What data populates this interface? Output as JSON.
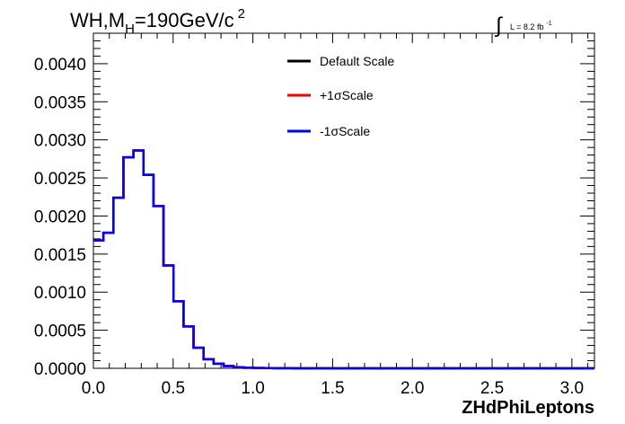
{
  "title": {
    "main": "WH,M",
    "subscript": "H",
    "rest": "=190GeV/c",
    "superscript": "2"
  },
  "lumi": {
    "integral_symbol": "∫",
    "text": "L = 8.2 fb",
    "superscript": "-1"
  },
  "chart_data": {
    "type": "step",
    "xlabel": "ZHdPhiLeptons",
    "ylabel": "",
    "xlim": [
      0,
      3.1416
    ],
    "ylim": [
      0,
      0.0044
    ],
    "x_ticks": [
      "0.0",
      "0.5",
      "1.0",
      "1.5",
      "2.0",
      "2.5",
      "3.0"
    ],
    "x_tick_values": [
      0,
      0.5,
      1.0,
      1.5,
      2.0,
      2.5,
      3.0
    ],
    "y_ticks": [
      "0.0000",
      "0.0005",
      "0.0010",
      "0.0015",
      "0.0020",
      "0.0025",
      "0.0030",
      "0.0035",
      "0.0040"
    ],
    "y_tick_values": [
      0,
      0.0005,
      0.001,
      0.0015,
      0.002,
      0.0025,
      0.003,
      0.0035,
      0.004
    ],
    "bin_width": 0.0628,
    "bin_edges_start": 0,
    "series": [
      {
        "name": "Default Scale",
        "color": "#000000",
        "values": [
          0.00168,
          0.00178,
          0.00224,
          0.00277,
          0.00286,
          0.00254,
          0.00213,
          0.00135,
          0.00088,
          0.00055,
          0.00027,
          0.00012,
          6e-05,
          3e-05,
          1.5e-05,
          8e-06,
          5e-06,
          3e-06,
          2e-06,
          1e-06,
          0,
          0,
          0,
          0,
          0,
          0,
          0,
          0,
          0,
          0,
          0,
          0,
          0,
          0,
          0,
          0,
          0,
          0,
          0,
          0,
          0,
          0,
          0,
          0,
          0,
          0,
          0,
          0,
          0,
          0
        ]
      },
      {
        "name": "+1σScale",
        "color": "#ff0000",
        "values": [
          0.00168,
          0.00178,
          0.00224,
          0.00277,
          0.00286,
          0.00254,
          0.00213,
          0.00135,
          0.00088,
          0.00055,
          0.00027,
          0.00012,
          6e-05,
          3e-05,
          1.5e-05,
          8e-06,
          5e-06,
          3e-06,
          2e-06,
          1e-06,
          0,
          0,
          0,
          0,
          0,
          0,
          0,
          0,
          0,
          0,
          0,
          0,
          0,
          0,
          0,
          0,
          0,
          0,
          0,
          0,
          0,
          0,
          0,
          0,
          0,
          0,
          0,
          0,
          0,
          0
        ]
      },
      {
        "name": "-1σScale",
        "color": "#0000ee",
        "values": [
          0.00168,
          0.00178,
          0.00224,
          0.00277,
          0.00286,
          0.00254,
          0.00213,
          0.00135,
          0.00088,
          0.00055,
          0.00027,
          0.00012,
          6e-05,
          3e-05,
          1.5e-05,
          8e-06,
          5e-06,
          3e-06,
          2e-06,
          1e-06,
          0,
          0,
          0,
          0,
          0,
          0,
          0,
          0,
          0,
          0,
          0,
          0,
          0,
          0,
          0,
          0,
          0,
          0,
          0,
          0,
          0,
          0,
          0,
          0,
          0,
          0,
          0,
          0,
          0,
          0
        ]
      }
    ],
    "legend_position": "top-center"
  }
}
